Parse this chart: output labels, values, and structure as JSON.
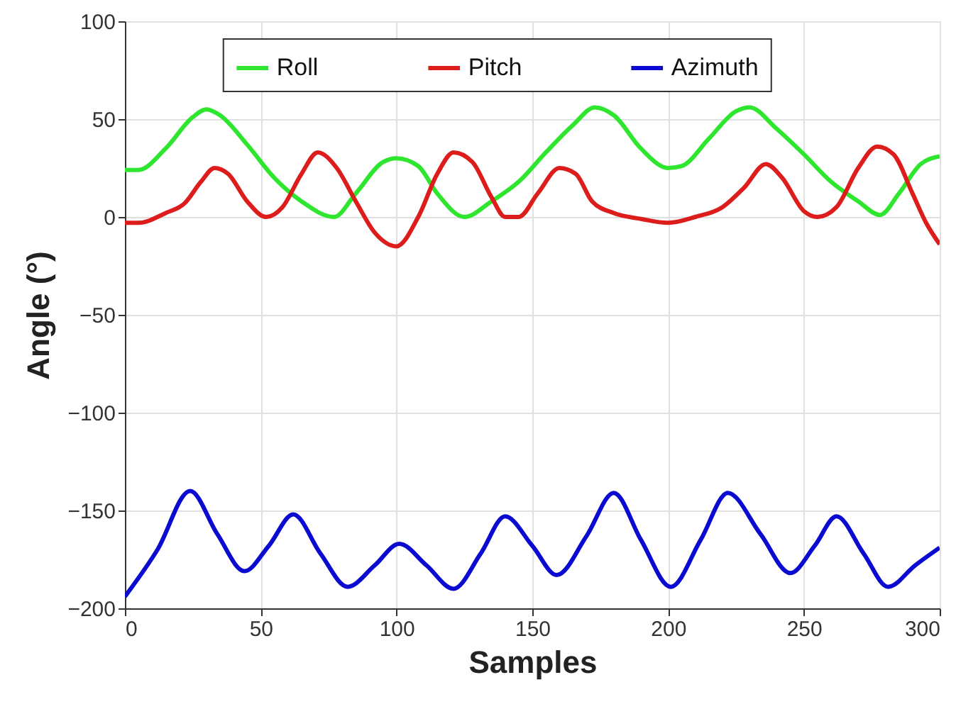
{
  "chart_data": {
    "type": "line",
    "xlabel": "Samples",
    "ylabel": "Angle (°)",
    "xlim": [
      0,
      300
    ],
    "ylim": [
      -200,
      100
    ],
    "xticks": [
      0,
      50,
      100,
      150,
      200,
      250,
      300
    ],
    "yticks": [
      -200,
      -150,
      -100,
      -50,
      0,
      50,
      100
    ],
    "grid": true,
    "legend": "top",
    "line_style": "solid",
    "marker": "none",
    "series": [
      {
        "name": "Roll",
        "color": "#2ee62e",
        "x": [
          0,
          5,
          15,
          25,
          30,
          35,
          45,
          55,
          65,
          77,
          85,
          95,
          100,
          108,
          115,
          125,
          135,
          145,
          155,
          165,
          173,
          180,
          190,
          200,
          205,
          215,
          225,
          230,
          240,
          250,
          260,
          270,
          278,
          285,
          293,
          300
        ],
        "values": [
          24,
          24,
          35,
          51,
          55,
          52,
          37,
          20,
          8,
          0,
          12,
          28,
          30,
          26,
          12,
          0,
          8,
          18,
          33,
          47,
          56,
          52,
          35,
          25,
          26,
          40,
          54,
          56,
          45,
          32,
          18,
          8,
          1,
          12,
          27,
          31
        ]
      },
      {
        "name": "Pitch",
        "color": "#dd1c1c",
        "x": [
          0,
          5,
          15,
          22,
          28,
          33,
          38,
          45,
          52,
          58,
          65,
          71,
          78,
          85,
          92,
          100,
          108,
          115,
          121,
          128,
          135,
          140,
          145,
          152,
          160,
          166,
          172,
          180,
          190,
          200,
          210,
          220,
          228,
          236,
          242,
          250,
          255,
          262,
          270,
          277,
          283,
          290,
          295,
          300
        ],
        "values": [
          -3,
          -3,
          2,
          7,
          18,
          25,
          22,
          8,
          0,
          5,
          22,
          33,
          25,
          8,
          -8,
          -15,
          0,
          22,
          33,
          28,
          10,
          0,
          0,
          12,
          25,
          22,
          8,
          2,
          -1,
          -3,
          0,
          5,
          15,
          27,
          20,
          3,
          0,
          5,
          25,
          36,
          32,
          12,
          -3,
          -14
        ]
      },
      {
        "name": "Azimuth",
        "color": "#0a0ad0",
        "x": [
          0,
          12,
          24,
          34,
          44,
          53,
          62,
          72,
          82,
          92,
          101,
          111,
          121,
          131,
          140,
          150,
          159,
          170,
          180,
          190,
          201,
          212,
          222,
          234,
          245,
          254,
          262,
          272,
          281,
          291,
          300
        ],
        "values": [
          -194,
          -170,
          -140,
          -162,
          -181,
          -168,
          -152,
          -172,
          -189,
          -178,
          -167,
          -178,
          -190,
          -172,
          -153,
          -168,
          -183,
          -163,
          -141,
          -165,
          -189,
          -165,
          -141,
          -162,
          -182,
          -168,
          -153,
          -172,
          -189,
          -178,
          -169
        ]
      }
    ]
  }
}
